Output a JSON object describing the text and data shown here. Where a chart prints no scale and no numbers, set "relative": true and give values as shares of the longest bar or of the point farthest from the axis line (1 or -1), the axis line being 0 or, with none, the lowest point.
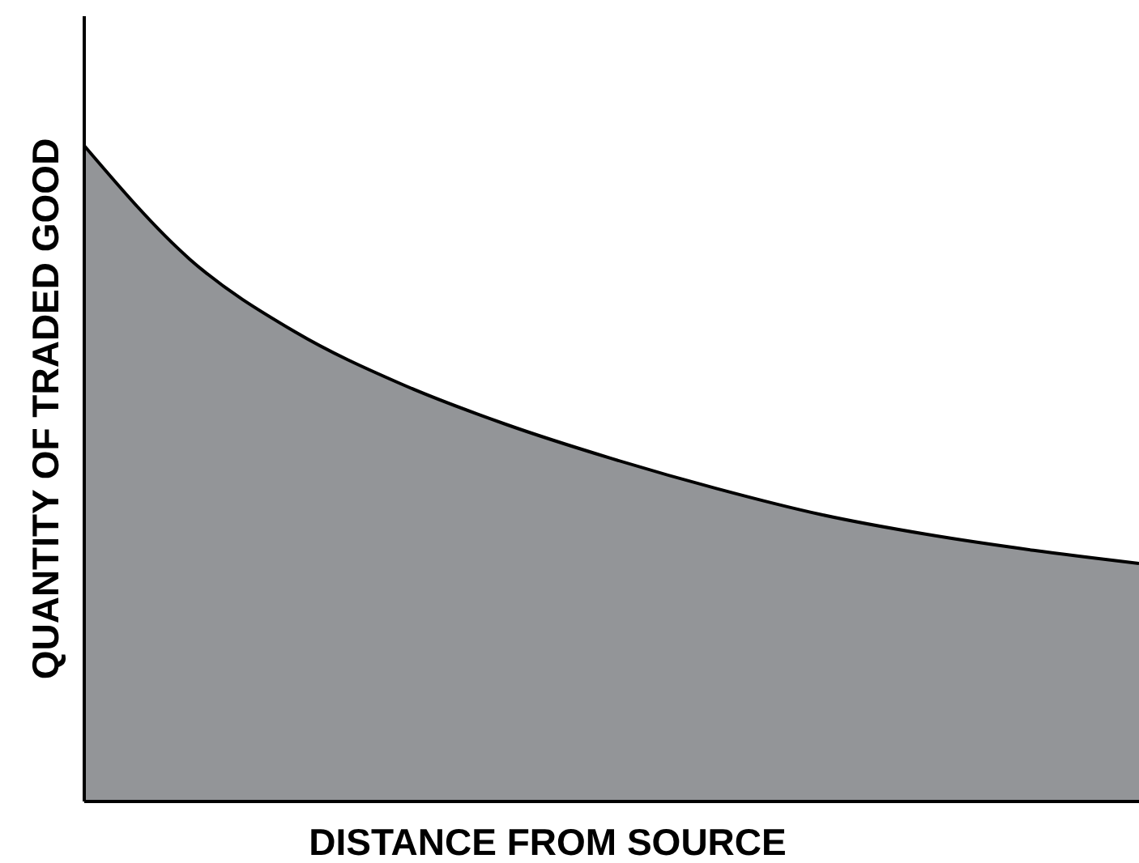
{
  "chart_data": {
    "type": "area",
    "relative": true,
    "xlabel": "DISTANCE FROM SOURCE",
    "ylabel": "QUANTITY OF TRADED GOOD",
    "categories": [
      null,
      null,
      null,
      null,
      null,
      null,
      null,
      null,
      null,
      null,
      null
    ],
    "values": [
      1,
      0.827,
      0.716,
      0.637,
      0.575,
      0.523,
      0.477,
      0.437,
      0.407,
      0.383,
      0.363
    ],
    "color": "#939598"
  }
}
